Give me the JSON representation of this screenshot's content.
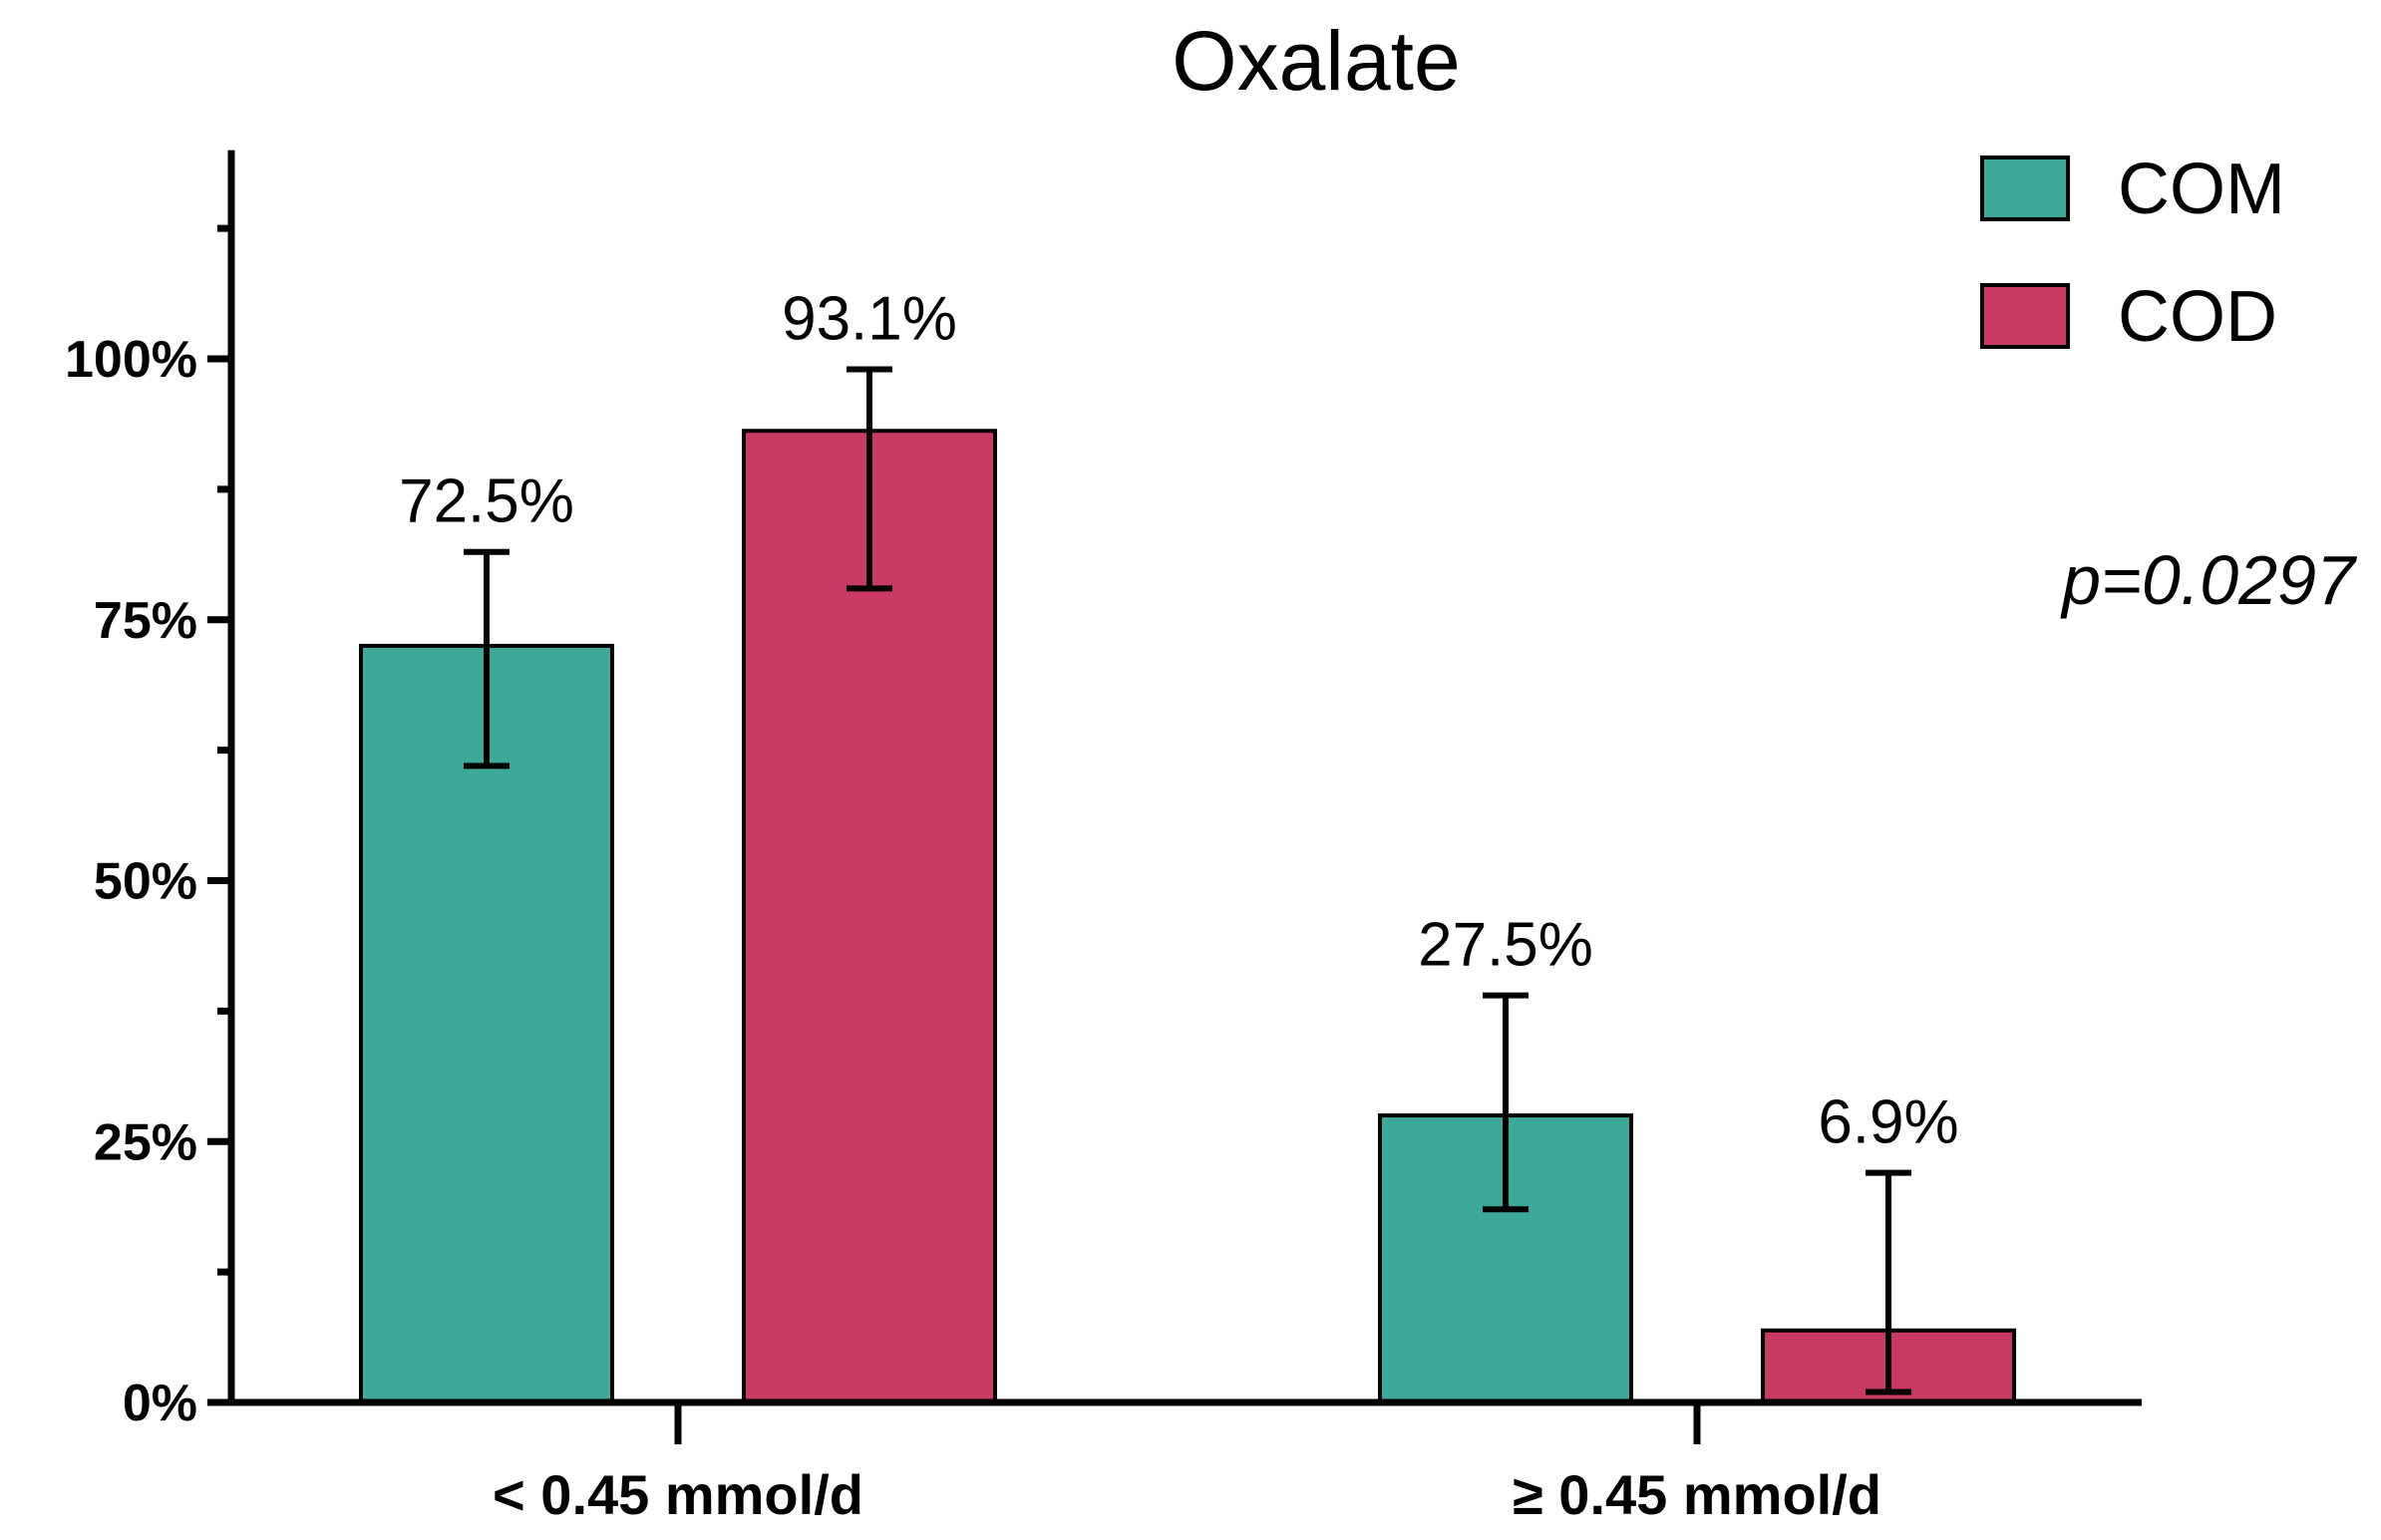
{
  "chart_data": {
    "type": "bar",
    "title": "Oxalate",
    "xlabel": "",
    "ylabel": "",
    "ylim": [
      0,
      120
    ],
    "y_ticks": [
      {
        "value": 0,
        "label": "0%"
      },
      {
        "value": 25,
        "label": "25%"
      },
      {
        "value": 50,
        "label": "50%"
      },
      {
        "value": 75,
        "label": "75%"
      },
      {
        "value": 100,
        "label": "100%"
      }
    ],
    "minor_ticks": [
      12.5,
      37.5,
      62.5,
      87.5,
      112.5
    ],
    "categories": [
      "< 0.45 mmol/d",
      "≥ 0.45 mmol/d"
    ],
    "series": [
      {
        "name": "COM",
        "color": "#3ca99a",
        "values": [
          72.5,
          27.5
        ],
        "labels": [
          "72.5%",
          "27.5%"
        ],
        "error_low": [
          61,
          18.5
        ],
        "error_high": [
          81.5,
          39
        ]
      },
      {
        "name": "COD",
        "color": "#c93a62",
        "values": [
          93.1,
          6.9
        ],
        "labels": [
          "93.1%",
          "6.9%"
        ],
        "error_low": [
          78,
          1
        ],
        "error_high": [
          99,
          22
        ]
      }
    ],
    "legend_position": "top-right",
    "annotation": "p=0.0297"
  }
}
